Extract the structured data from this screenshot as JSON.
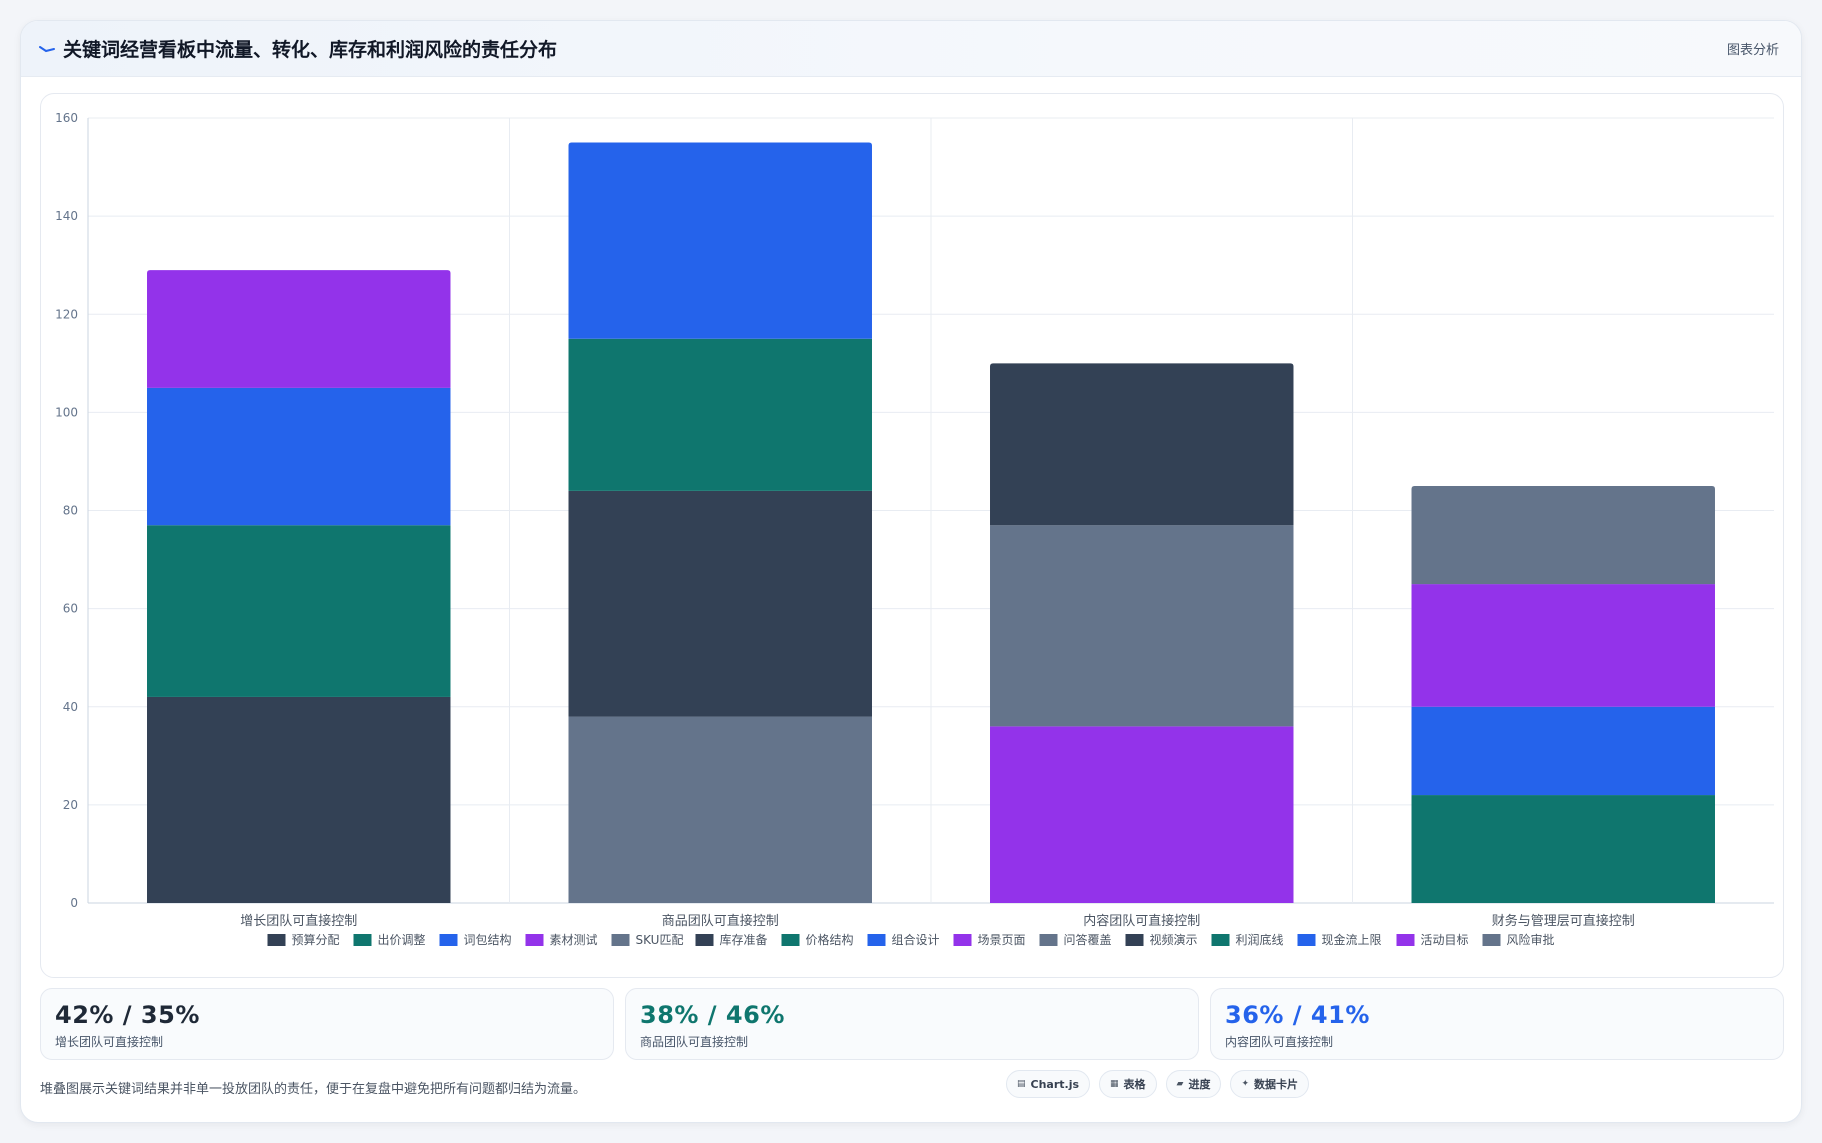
{
  "header": {
    "title": "关键词经营看板中流量、转化、库存和利润风险的责任分布",
    "action_label": "图表分析"
  },
  "chart_data": {
    "type": "bar",
    "stacked": true,
    "title": "",
    "xlabel": "",
    "ylabel": "",
    "ylim": [
      0,
      160
    ],
    "yticks": [
      0,
      20,
      40,
      60,
      80,
      100,
      120,
      140,
      160
    ],
    "grid": true,
    "legend_position": "bottom",
    "categories": [
      "增长团队可直接控制",
      "商品团队可直接控制",
      "内容团队可直接控制",
      "财务与管理层可直接控制"
    ],
    "series": [
      {
        "name": "预算分配",
        "color": "#334155",
        "values": [
          42,
          0,
          0,
          0
        ]
      },
      {
        "name": "出价调整",
        "color": "#0f766e",
        "values": [
          35,
          0,
          0,
          0
        ]
      },
      {
        "name": "词包结构",
        "color": "#2563eb",
        "values": [
          28,
          0,
          0,
          0
        ]
      },
      {
        "name": "素材测试",
        "color": "#9333ea",
        "values": [
          24,
          0,
          0,
          0
        ]
      },
      {
        "name": "SKU匹配",
        "color": "#64748b",
        "values": [
          0,
          38,
          0,
          0
        ]
      },
      {
        "name": "库存准备",
        "color": "#334155",
        "values": [
          0,
          46,
          0,
          0
        ]
      },
      {
        "name": "价格结构",
        "color": "#0f766e",
        "values": [
          0,
          31,
          0,
          0
        ]
      },
      {
        "name": "组合设计",
        "color": "#2563eb",
        "values": [
          0,
          40,
          0,
          0
        ]
      },
      {
        "name": "场景页面",
        "color": "#9333ea",
        "values": [
          0,
          0,
          36,
          0
        ]
      },
      {
        "name": "问答覆盖",
        "color": "#64748b",
        "values": [
          0,
          0,
          41,
          0
        ]
      },
      {
        "name": "视频演示",
        "color": "#334155",
        "values": [
          0,
          0,
          33,
          0
        ]
      },
      {
        "name": "利润底线",
        "color": "#0f766e",
        "values": [
          0,
          0,
          0,
          22
        ]
      },
      {
        "name": "现金流上限",
        "color": "#2563eb",
        "values": [
          0,
          0,
          0,
          18
        ]
      },
      {
        "name": "活动目标",
        "color": "#9333ea",
        "values": [
          0,
          0,
          0,
          25
        ]
      },
      {
        "name": "风险审批",
        "color": "#64748b",
        "values": [
          0,
          0,
          0,
          20
        ]
      }
    ]
  },
  "stats": [
    {
      "value": "42% / 35%",
      "label": "增长团队可直接控制",
      "color": "#1f2937"
    },
    {
      "value": "38% / 46%",
      "label": "商品团队可直接控制",
      "color": "#0f766e"
    },
    {
      "value": "36% / 41%",
      "label": "内容团队可直接控制",
      "color": "#2563eb"
    }
  ],
  "footnote": "堆叠图展示关键词结果并非单一投放团队的责任，便于在复盘中避免把所有问题都归结为流量。",
  "chips": [
    {
      "icon": "chart-icon",
      "glyph": "▤",
      "label": "Chart.js"
    },
    {
      "icon": "table-icon",
      "glyph": "▦",
      "label": "表格"
    },
    {
      "icon": "progress-icon",
      "glyph": "▰",
      "label": "进度"
    },
    {
      "icon": "card-icon",
      "glyph": "✦",
      "label": "数据卡片"
    }
  ]
}
